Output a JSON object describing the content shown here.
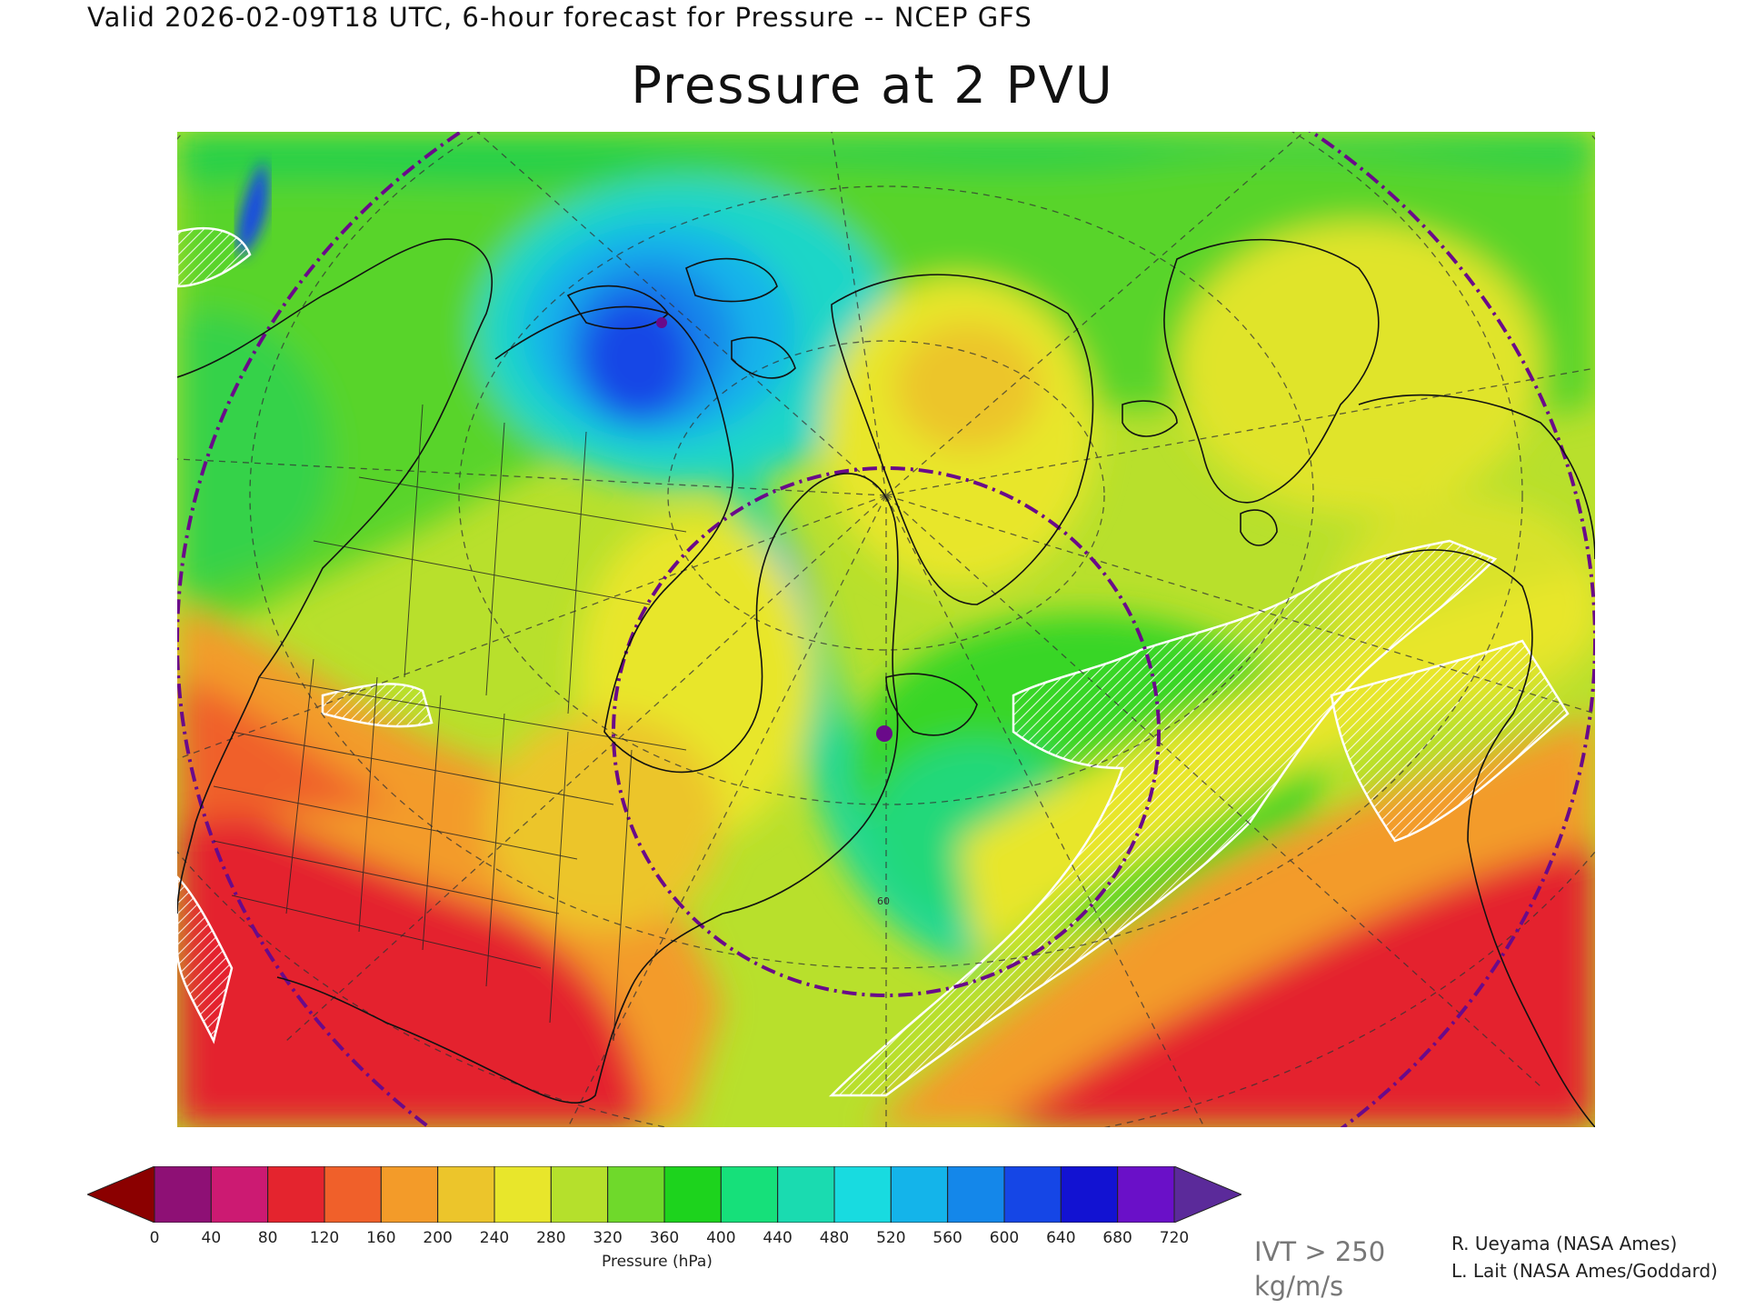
{
  "header": {
    "valid_line": "Valid 2026-02-09T18 UTC, 6-hour forecast for Pressure -- NCEP GFS",
    "title": "Pressure at 2 PVU"
  },
  "map": {
    "projection_hint": "polar stereographic, North America / North Atlantic",
    "icons": [
      "low-pressure-dot-arctic",
      "low-pressure-dot-labrador"
    ],
    "grid_label": "60",
    "hatch_meaning": "IVT > 250 kg/m/s"
  },
  "colorbar": {
    "units_label": "Pressure (hPa)",
    "tick_labels": [
      "0",
      "40",
      "80",
      "120",
      "160",
      "200",
      "240",
      "280",
      "320",
      "360",
      "400",
      "440",
      "480",
      "520",
      "560",
      "600",
      "640",
      "680",
      "720"
    ],
    "under_color": "#8b0000",
    "over_color": "#5b2a9a",
    "colors": [
      "#8e1075",
      "#cc1a72",
      "#e4242e",
      "#f0602a",
      "#f39b29",
      "#ecc52b",
      "#e8e62b",
      "#b5e02c",
      "#6fd92b",
      "#1dd31d",
      "#16e07a",
      "#1adbb0",
      "#18dbe0",
      "#14b4ea",
      "#1487ea",
      "#1546e6",
      "#1212d2",
      "#6a10c8"
    ]
  },
  "legend_note": {
    "line1": "IVT > 250",
    "line2": "kg/m/s"
  },
  "credits": {
    "line1": "R. Ueyama (NASA Ames)",
    "line2": "L. Lait (NASA Ames/Goddard)"
  }
}
